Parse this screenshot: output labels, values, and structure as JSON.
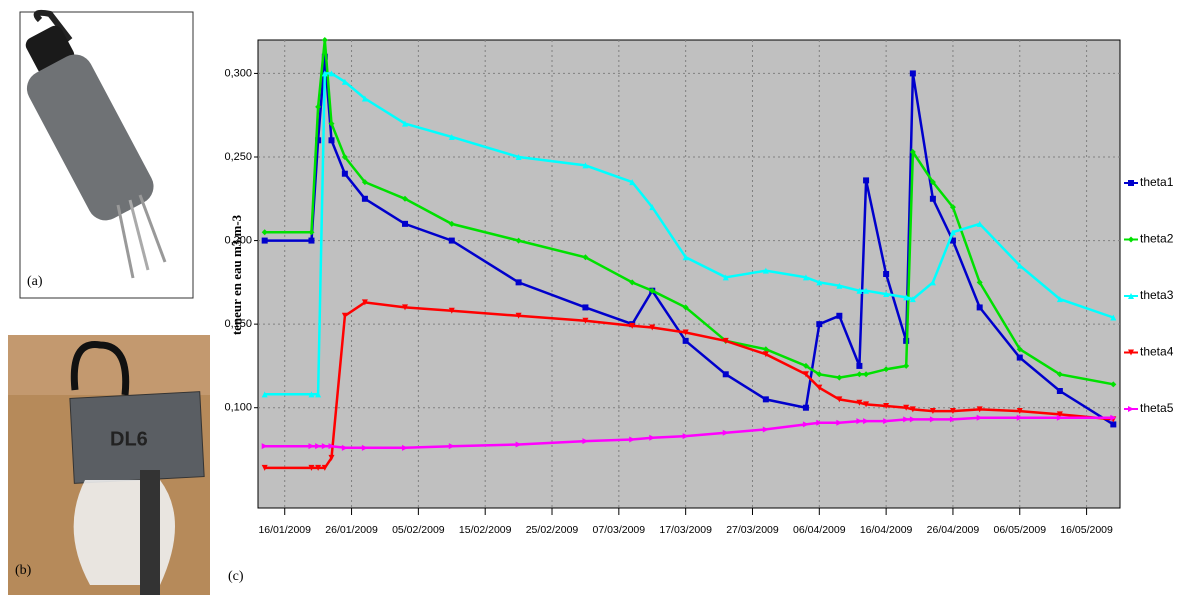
{
  "photos": {
    "a": {
      "label": "(a)"
    },
    "b": {
      "label": "(b)",
      "logger_text": "DL6"
    }
  },
  "chart_data": {
    "type": "line",
    "panel_label": "(c)",
    "y_label": "teneur en eau  m3.m-3",
    "x": [
      "13/01/2009",
      "20/01/2009",
      "21/01/2009",
      "22/01/2009",
      "23/01/2009",
      "25/01/2009",
      "28/01/2009",
      "03/02/2009",
      "10/02/2009",
      "20/02/2009",
      "02/03/2009",
      "09/03/2009",
      "12/03/2009",
      "17/03/2009",
      "23/03/2009",
      "29/03/2009",
      "04/04/2009",
      "06/04/2009",
      "09/04/2009",
      "12/04/2009",
      "13/04/2009",
      "16/04/2009",
      "19/04/2009",
      "20/04/2009",
      "23/04/2009",
      "26/04/2009",
      "30/04/2009",
      "06/05/2009",
      "12/05/2009",
      "20/05/2009"
    ],
    "xlim": [
      "12/01/2009",
      "21/05/2009"
    ],
    "xticks": [
      "16/01/2009",
      "26/01/2009",
      "05/02/2009",
      "15/02/2009",
      "25/02/2009",
      "07/03/2009",
      "17/03/2009",
      "27/03/2009",
      "06/04/2009",
      "16/04/2009",
      "26/04/2009",
      "06/05/2009",
      "16/05/2009"
    ],
    "ylim": [
      0.04,
      0.32
    ],
    "yticks": [
      {
        "value": 0.1,
        "label": "0,100"
      },
      {
        "value": 0.15,
        "label": "0,150"
      },
      {
        "value": 0.2,
        "label": "0,200"
      },
      {
        "value": 0.25,
        "label": "0,250"
      },
      {
        "value": 0.3,
        "label": "0,300"
      }
    ],
    "grid": true,
    "legend": "right",
    "series": [
      {
        "name": "theta1",
        "color": "#0000cc",
        "marker": "square",
        "values": [
          0.2,
          0.2,
          0.26,
          0.31,
          0.26,
          0.24,
          0.225,
          0.21,
          0.2,
          0.175,
          0.16,
          0.15,
          0.17,
          0.14,
          0.12,
          0.105,
          0.1,
          0.15,
          0.155,
          0.125,
          0.236,
          0.18,
          0.14,
          0.3,
          0.225,
          0.2,
          0.16,
          0.13,
          0.11,
          0.09
        ]
      },
      {
        "name": "theta2",
        "color": "#00e000",
        "marker": "diamond",
        "values": [
          0.205,
          0.205,
          0.28,
          0.32,
          0.27,
          0.25,
          0.235,
          0.225,
          0.21,
          0.2,
          0.19,
          0.175,
          0.17,
          0.16,
          0.14,
          0.135,
          0.125,
          0.12,
          0.118,
          0.12,
          0.12,
          0.123,
          0.125,
          0.253,
          0.235,
          0.22,
          0.175,
          0.135,
          0.12,
          0.114
        ]
      },
      {
        "name": "theta3",
        "color": "#00ffff",
        "marker": "triangle-up",
        "values": [
          0.108,
          0.108,
          0.108,
          0.3,
          0.3,
          0.295,
          0.285,
          0.27,
          0.262,
          0.25,
          0.245,
          0.235,
          0.22,
          0.19,
          0.178,
          0.182,
          0.178,
          0.175,
          0.173,
          0.17,
          0.17,
          0.168,
          0.166,
          0.165,
          0.175,
          0.205,
          0.21,
          0.185,
          0.165,
          0.154
        ]
      },
      {
        "name": "theta4",
        "color": "#ff0000",
        "marker": "triangle-down",
        "values": [
          0.064,
          0.064,
          0.064,
          0.064,
          0.07,
          0.155,
          0.163,
          0.16,
          0.158,
          0.155,
          0.152,
          0.149,
          0.148,
          0.145,
          0.14,
          0.132,
          0.12,
          0.112,
          0.105,
          0.103,
          0.102,
          0.101,
          0.1,
          0.099,
          0.098,
          0.098,
          0.099,
          0.098,
          0.096,
          0.093
        ]
      },
      {
        "name": "theta5",
        "color": "#ff00ff",
        "marker": "triangle-right",
        "values": [
          0.077,
          0.077,
          0.077,
          0.077,
          0.077,
          0.076,
          0.076,
          0.076,
          0.077,
          0.078,
          0.08,
          0.081,
          0.082,
          0.083,
          0.085,
          0.087,
          0.09,
          0.091,
          0.091,
          0.092,
          0.092,
          0.092,
          0.093,
          0.093,
          0.093,
          0.093,
          0.094,
          0.094,
          0.094,
          0.094
        ]
      }
    ]
  }
}
